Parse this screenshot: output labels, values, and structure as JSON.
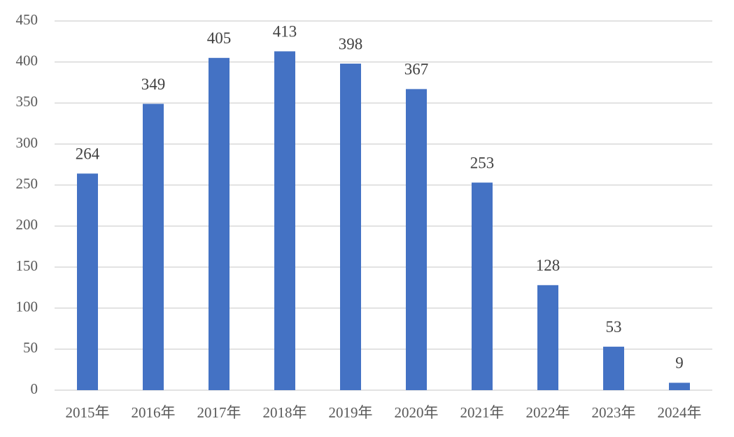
{
  "chart_data": {
    "type": "bar",
    "categories": [
      "2015年",
      "2016年",
      "2017年",
      "2018年",
      "2019年",
      "2020年",
      "2021年",
      "2022年",
      "2023年",
      "2024年"
    ],
    "values": [
      264,
      349,
      405,
      413,
      398,
      367,
      253,
      128,
      53,
      9
    ],
    "color": "#4472c4",
    "ylim": [
      0,
      450
    ],
    "yticks": [
      0,
      50,
      100,
      150,
      200,
      250,
      300,
      350,
      400,
      450
    ],
    "grid": true
  }
}
